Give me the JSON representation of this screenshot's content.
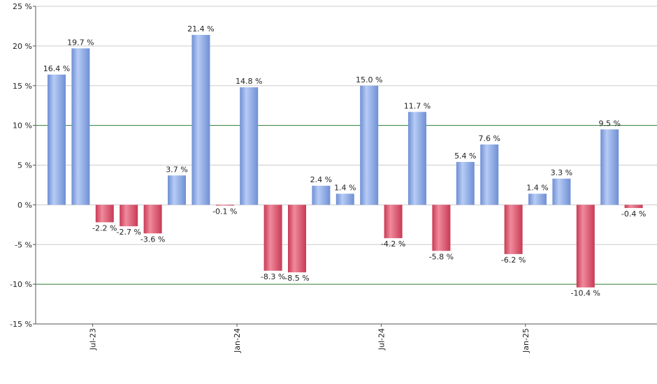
{
  "chart_data": {
    "type": "bar",
    "title": "",
    "xlabel": "",
    "ylabel": "",
    "ylim": [
      -15,
      25
    ],
    "y_ticks": [
      -15,
      -10,
      -5,
      0,
      5,
      10,
      15,
      20,
      25
    ],
    "y_tick_suffix": " %",
    "reference_lines": [
      10,
      -10
    ],
    "grid": "horizontal",
    "x_tick_labels": [
      {
        "label": "Jul-23",
        "after_index": 1
      },
      {
        "label": "Jan-24",
        "after_index": 7
      },
      {
        "label": "Jul-24",
        "after_index": 13
      },
      {
        "label": "Jan-25",
        "after_index": 19
      }
    ],
    "values": [
      16.4,
      19.7,
      -2.2,
      -2.7,
      -3.6,
      3.7,
      21.4,
      -0.1,
      14.8,
      -8.3,
      -8.5,
      2.4,
      1.4,
      15.0,
      -4.2,
      11.7,
      -5.8,
      5.4,
      7.6,
      -6.2,
      1.4,
      3.3,
      -10.4,
      9.5,
      -0.4
    ],
    "data_labels": [
      "16.4 %",
      "19.7 %",
      "-2.2 %",
      "-2.7 %",
      "-3.6 %",
      "3.7 %",
      "21.4 %",
      "-0.1 %",
      "14.8 %",
      "-8.3 %",
      "-8.5 %",
      "2.4 %",
      "1.4 %",
      "15.0 %",
      "-4.2 %",
      "11.7 %",
      "-5.8 %",
      "5.4 %",
      "7.6 %",
      "-6.2 %",
      "1.4 %",
      "3.3 %",
      "-10.4 %",
      "9.5 %",
      "-0.4 %"
    ],
    "colors": {
      "positive": "#6f8fd4",
      "positive_light": "#b6ccf5",
      "negative": "#c83a55",
      "negative_light": "#f08a9c",
      "grid": "#cccccc",
      "reference": "#2e7d32",
      "axis": "#555555"
    }
  }
}
